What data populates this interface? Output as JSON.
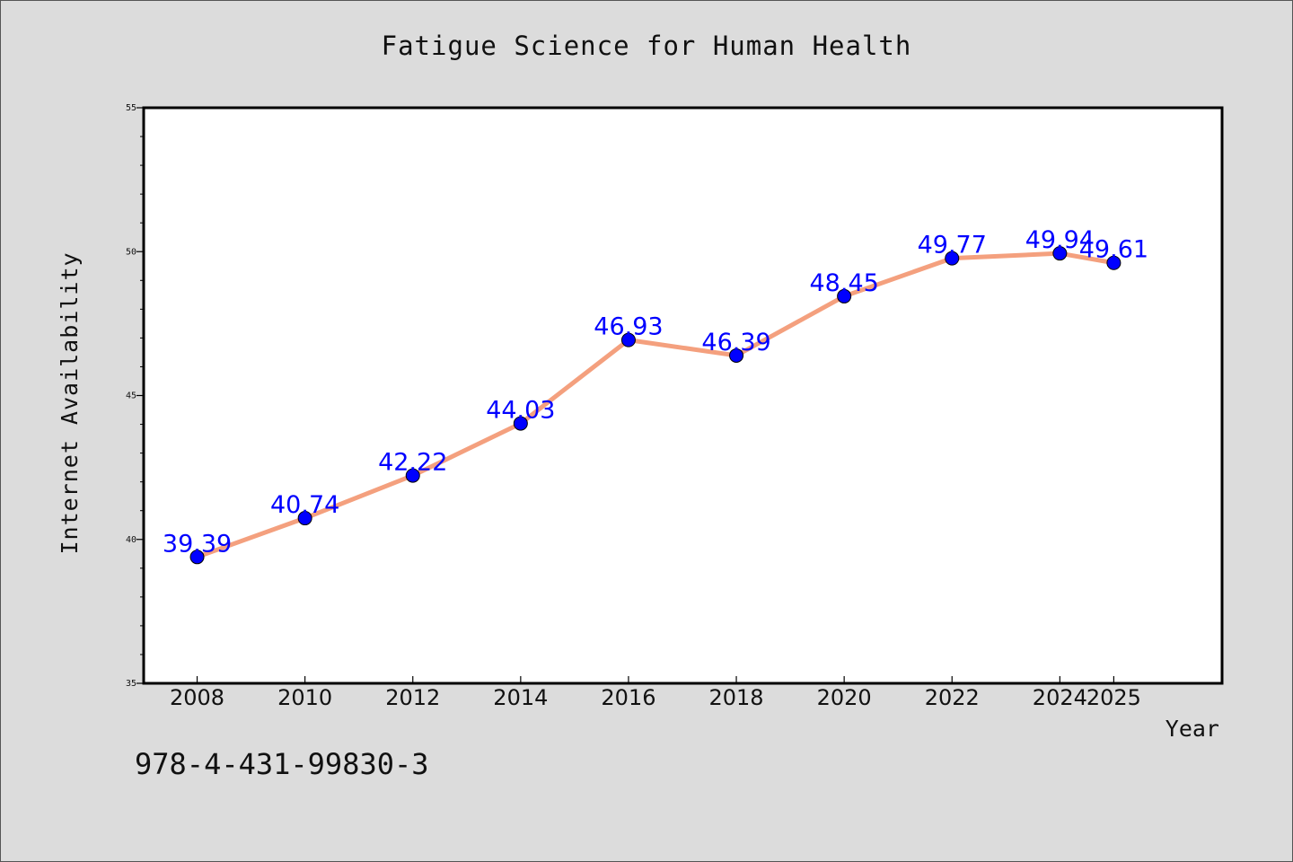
{
  "chart_data": {
    "type": "line",
    "title": "Fatigue Science for Human Health",
    "xlabel": "Year",
    "ylabel": "Internet Availability",
    "x": [
      2008,
      2010,
      2012,
      2014,
      2016,
      2018,
      2020,
      2022,
      2024,
      2025
    ],
    "series": [
      {
        "values": [
          39.39,
          40.74,
          42.22,
          44.03,
          46.93,
          46.39,
          48.45,
          49.77,
          49.94,
          49.61
        ],
        "data_labels": [
          "39.39",
          "40.74",
          "42.22",
          "44.03",
          "46.93",
          "46.39",
          "48.45",
          "49.77",
          "49.94",
          "49.61"
        ]
      }
    ],
    "x_tick_labels": [
      "2008",
      "2010",
      "2012",
      "2014",
      "2016",
      "2018",
      "2020",
      "2022",
      "2024",
      "2025"
    ],
    "y_tick_labels": [
      "35",
      "40",
      "45",
      "50",
      "55"
    ],
    "y_ticks": [
      35,
      40,
      45,
      50,
      55
    ],
    "ylim": [
      35,
      55
    ],
    "grid": false,
    "legend": "none",
    "colors": {
      "line": "#f4a07e",
      "marker": "#0000ff",
      "data_label": "#0000ff",
      "background": "#dcdcdc",
      "plot_background": "#ffffff"
    }
  },
  "footer": {
    "isbn": "978-4-431-99830-3"
  }
}
